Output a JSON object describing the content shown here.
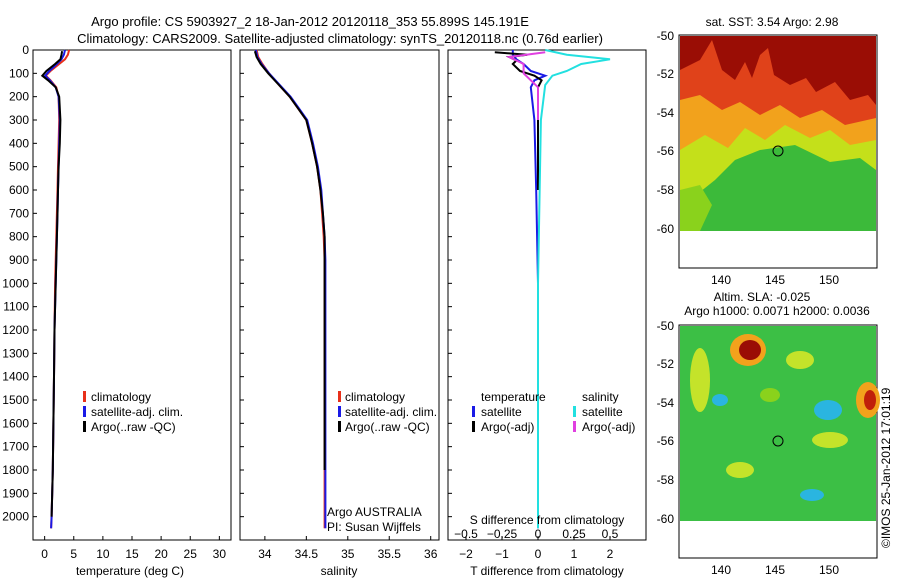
{
  "header": {
    "line1": "Argo profile: CS 5903927_2 18-Jan-2012 20120118_353 55.899S 145.191E",
    "line2": "Climatology: CARS2009. Satellite-adjusted climatology: synTS_20120118.nc (0.76d earlier)"
  },
  "depth_axis": {
    "ylim": [
      0,
      2100
    ],
    "ticks": [
      0,
      100,
      200,
      300,
      400,
      500,
      600,
      700,
      800,
      900,
      1000,
      1100,
      1200,
      1300,
      1400,
      1500,
      1600,
      1700,
      1800,
      1900,
      2000
    ],
    "tick_labels": [
      "0",
      "100",
      "200",
      "300",
      "400",
      "500",
      "600",
      "700",
      "800",
      "900",
      "1000",
      "1100",
      "1200",
      "1300",
      "1400",
      "1500",
      "1600",
      "1700",
      "1800",
      "1900",
      "2000"
    ]
  },
  "panels": {
    "temperature": {
      "xlabel": "temperature (deg C)",
      "xlim": [
        -2,
        32
      ],
      "ticks": [
        0,
        5,
        10,
        15,
        20,
        25,
        30
      ],
      "tick_labels": [
        "0",
        "5",
        "10",
        "15",
        "20",
        "25",
        "30"
      ],
      "legend": [
        "climatology",
        "satellite-adj. clim.",
        "Argo(..raw -QC)"
      ]
    },
    "salinity": {
      "xlabel": "salinity",
      "xlim": [
        33.7,
        36.1
      ],
      "ticks": [
        34,
        34.5,
        35,
        35.5,
        36
      ],
      "tick_labels": [
        "34",
        "34.5",
        "35",
        "35.5",
        "36"
      ],
      "legend": [
        "climatology",
        "satellite-adj. clim.",
        "Argo(..raw -QC)"
      ],
      "note1": "Argo AUSTRALIA",
      "note2": "PI: Susan Wijffels"
    },
    "difference": {
      "xlabel": "T difference from climatology",
      "xlim": [
        -2.5,
        3
      ],
      "ticks": [
        -2,
        -1,
        0,
        1,
        2
      ],
      "tick_labels": [
        "−2",
        "−1",
        "0",
        "1",
        "2"
      ],
      "s_label": "S difference from climatology",
      "s_ticks": [
        -0.5,
        -0.25,
        0,
        0.25,
        0.5
      ],
      "s_tick_labels": [
        "−0.5",
        "−0.25",
        "0",
        "0.25",
        "0.5"
      ],
      "legend_t_title": "temperature",
      "legend_t": [
        "satellite",
        "Argo(-adj)"
      ],
      "legend_s_title": "salinity",
      "legend_s": [
        "satellite",
        "Argo(-adj)"
      ]
    }
  },
  "maps": {
    "sst": {
      "title": "sat. SST: 3.54  Argo: 2.98",
      "ytick_labels": [
        "-50",
        "-52",
        "-54",
        "-56",
        "-58",
        "-60"
      ],
      "xtick_labels": [
        "140",
        "145",
        "150"
      ]
    },
    "sla": {
      "title1": "Altim. SLA: -0.025",
      "title2": "Argo h1000: 0.0071 h2000: 0.0036",
      "ytick_labels": [
        "-50",
        "-52",
        "-54",
        "-56",
        "-58",
        "-60"
      ],
      "xtick_labels": [
        "140",
        "145",
        "150"
      ]
    }
  },
  "watermark": "©IMOS 25-Jan-2012 17:01:19",
  "colors": {
    "climatology": "#e8301a",
    "satellite": "#1a1ae6",
    "argo": "#000000",
    "satellite_s": "#22e0e0",
    "argo_s": "#e040e0"
  },
  "chart_data": [
    {
      "type": "line",
      "panel": "temperature",
      "xlabel": "temperature (deg C)",
      "ylim": [
        0,
        2100
      ],
      "series": [
        {
          "name": "climatology",
          "x": [
            4.2,
            4.0,
            3.5,
            2.5,
            1.0,
            0.2,
            1.0,
            2.0,
            2.4,
            2.5,
            2.4,
            2.3,
            2.2,
            2.1,
            2.0,
            1.9,
            1.8,
            1.7,
            1.6,
            1.5,
            1.4,
            1.3,
            1.2,
            1.1
          ],
          "y": [
            0,
            20,
            40,
            60,
            90,
            110,
            130,
            160,
            200,
            300,
            400,
            500,
            600,
            700,
            800,
            900,
            1000,
            1200,
            1400,
            1600,
            1800,
            1900,
            2000,
            2050
          ]
        },
        {
          "name": "satellite-adj. clim.",
          "x": [
            3.5,
            3.3,
            2.9,
            2.1,
            0.8,
            0.1,
            0.9,
            1.9,
            2.4,
            2.6,
            2.5,
            2.4,
            2.3,
            2.2,
            2.1,
            2.0,
            1.9,
            1.7,
            1.6,
            1.5,
            1.4,
            1.3,
            1.2,
            1.1
          ],
          "y": [
            0,
            20,
            40,
            60,
            90,
            110,
            130,
            160,
            200,
            300,
            400,
            500,
            600,
            700,
            800,
            900,
            1000,
            1200,
            1400,
            1600,
            1800,
            1900,
            2000,
            2050
          ]
        },
        {
          "name": "Argo(..raw -QC)",
          "x": [
            3.0,
            2.9,
            2.7,
            1.8,
            0.3,
            -0.4,
            0.6,
            1.9,
            2.5,
            2.7,
            2.6,
            2.4,
            2.3,
            2.2,
            2.1,
            2.0,
            1.9,
            1.7,
            1.6,
            1.5,
            1.4,
            1.3,
            1.2
          ],
          "y": [
            5,
            20,
            40,
            60,
            90,
            110,
            130,
            160,
            200,
            300,
            400,
            500,
            600,
            700,
            800,
            900,
            1000,
            1200,
            1400,
            1600,
            1800,
            1900,
            2000
          ]
        }
      ]
    },
    {
      "type": "line",
      "panel": "salinity",
      "xlabel": "salinity",
      "ylim": [
        0,
        2100
      ],
      "series": [
        {
          "name": "climatology",
          "x": [
            33.9,
            33.92,
            33.97,
            34.05,
            34.17,
            34.3,
            34.4,
            34.5,
            34.57,
            34.63,
            34.67,
            34.69,
            34.71,
            34.72,
            34.72,
            34.72,
            34.72,
            34.72
          ],
          "y": [
            0,
            30,
            60,
            100,
            150,
            200,
            250,
            300,
            400,
            500,
            600,
            700,
            800,
            900,
            1000,
            1400,
            1800,
            2050
          ]
        },
        {
          "name": "satellite-adj. clim.",
          "x": [
            33.89,
            33.91,
            33.96,
            34.05,
            34.18,
            34.31,
            34.41,
            34.51,
            34.58,
            34.64,
            34.68,
            34.7,
            34.72,
            34.73,
            34.73,
            34.73,
            34.73,
            34.73
          ],
          "y": [
            0,
            30,
            60,
            100,
            150,
            200,
            250,
            300,
            400,
            500,
            600,
            700,
            800,
            900,
            1000,
            1400,
            1800,
            2050
          ]
        },
        {
          "name": "Argo(..raw -QC)",
          "x": [
            33.88,
            33.9,
            33.95,
            34.04,
            34.17,
            34.3,
            34.4,
            34.5,
            34.57,
            34.63,
            34.67,
            34.7,
            34.72,
            34.72,
            34.72,
            34.72,
            34.72
          ],
          "y": [
            5,
            30,
            60,
            100,
            150,
            200,
            250,
            300,
            400,
            500,
            600,
            700,
            800,
            900,
            1000,
            1400,
            1800
          ]
        }
      ]
    },
    {
      "type": "line",
      "panel": "difference",
      "xlabel": "T difference from climatology",
      "ylim": [
        0,
        2100
      ],
      "series": [
        {
          "name": "temperature satellite",
          "x": [
            -0.7,
            -0.7,
            -0.6,
            -0.4,
            -0.2,
            0.2,
            -0.1,
            -0.2,
            -0.1,
            -0.05,
            0.0,
            0.0,
            0.0
          ],
          "y": [
            0,
            20,
            40,
            60,
            90,
            110,
            130,
            160,
            300,
            600,
            1000,
            1500,
            2050
          ]
        },
        {
          "name": "temperature Argo(-adj)",
          "x": [
            -1.2,
            -0.3,
            -0.8,
            -0.6,
            -0.7,
            -0.5,
            -0.1,
            0.1,
            0.0,
            0.0,
            0.0
          ],
          "y": [
            10,
            20,
            30,
            45,
            60,
            90,
            110,
            130,
            160,
            300,
            600
          ]
        },
        {
          "name": "salinity satellite",
          "x": [
            0.05,
            0.2,
            0.5,
            0.3,
            0.2,
            0.1,
            0.05,
            0.02,
            0.0,
            0.0
          ],
          "y": [
            0,
            20,
            40,
            60,
            90,
            110,
            150,
            300,
            1000,
            2050
          ]
        },
        {
          "name": "salinity Argo(-adj)",
          "x": [
            0.05,
            -0.2,
            -0.1,
            -0.1,
            0.0,
            0.0
          ],
          "y": [
            10,
            30,
            60,
            100,
            160,
            300
          ]
        }
      ]
    }
  ]
}
